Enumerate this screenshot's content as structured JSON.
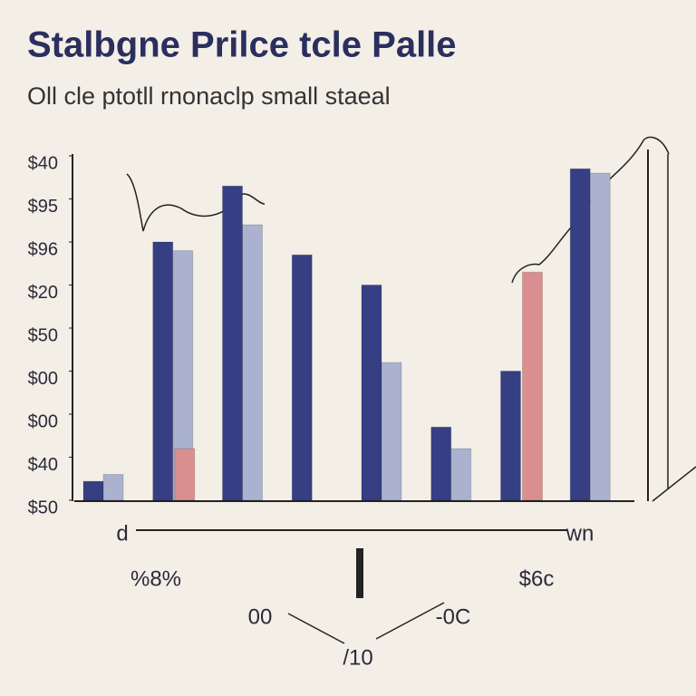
{
  "chart_data": {
    "type": "bar",
    "title": "Stalbgne Prilce  tcle Palle",
    "subtitle": "Oll cle ptotll rnonaclp small staeal",
    "categories": [
      null,
      null,
      null,
      null,
      null,
      null,
      null,
      null
    ],
    "series": [
      {
        "color": "#363f84",
        "values": [
          0.44,
          6.0,
          7.3,
          5.7,
          5.0,
          1.7,
          3.0,
          7.7
        ]
      },
      {
        "color": "#aab2cf",
        "values": [
          0.6,
          5.8,
          6.4,
          null,
          3.2,
          1.2,
          null,
          7.6
        ]
      },
      {
        "color": "#d98f8f",
        "values": [
          null,
          1.2,
          null,
          null,
          null,
          null,
          5.3,
          null
        ]
      }
    ],
    "ylim": [
      0,
      8
    ],
    "yticks": [
      {
        "value": 0,
        "label": "$50"
      },
      {
        "value": 1,
        "label": "$40"
      },
      {
        "value": 2,
        "label": "$00"
      },
      {
        "value": 3,
        "label": "$00"
      },
      {
        "value": 4,
        "label": "$50"
      },
      {
        "value": 5,
        "label": "$20"
      },
      {
        "value": 6,
        "label": "$96"
      },
      {
        "value": 7,
        "label": "$95"
      },
      {
        "value": 8,
        "label": "$40"
      }
    ],
    "annotations": [
      "d",
      "wn",
      "%8%",
      "$6c",
      "00",
      "-0C",
      "/10"
    ]
  }
}
